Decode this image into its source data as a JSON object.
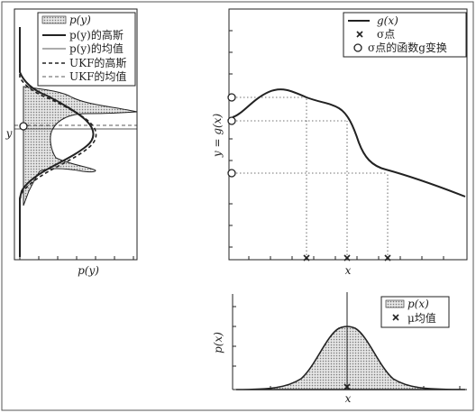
{
  "left_panel": {
    "legend": [
      {
        "kind": "hatch",
        "label": "p(y)"
      },
      {
        "kind": "thick",
        "label": "p(y)的高斯"
      },
      {
        "kind": "thin",
        "label": "p(y)的均值"
      },
      {
        "kind": "dashed-thick",
        "label": "UKF的高斯"
      },
      {
        "kind": "dashed-thin",
        "label": "UKF的均值"
      }
    ],
    "xlabel": "p(y)",
    "ylabel": "y"
  },
  "right_panel": {
    "legend": [
      {
        "kind": "line",
        "label": "g(x)"
      },
      {
        "kind": "x-marker",
        "label": "σ点"
      },
      {
        "kind": "circle-marker",
        "label": "σ点的函数g变换"
      }
    ],
    "xlabel": "x",
    "ylabel": "y = g(x)"
  },
  "bottom_panel": {
    "legend": [
      {
        "kind": "hatch",
        "label": "p(x)"
      },
      {
        "kind": "x-marker",
        "label": "μ均值"
      }
    ],
    "xlabel": "x",
    "ylabel": "p(x)"
  },
  "colors": {
    "ink": "#222222",
    "fill": "#c8c8c8",
    "border": "#555555"
  }
}
